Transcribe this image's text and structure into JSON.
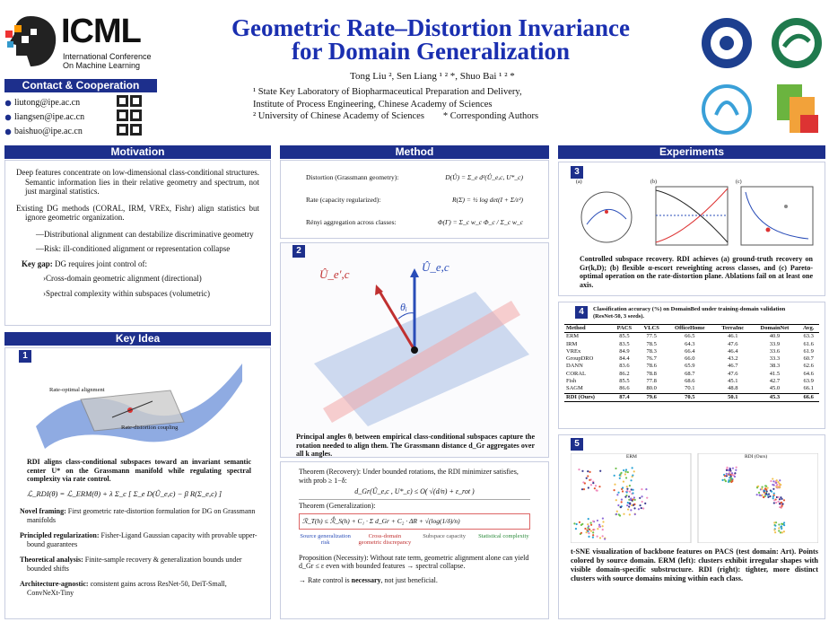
{
  "header": {
    "logo_title": "ICML",
    "logo_sub": [
      "International Conference",
      "On Machine Learning"
    ],
    "title": [
      "Geometric Rate–Distortion Invariance",
      "for Domain Generalization"
    ],
    "authors": "Tong Liu ², Sen Liang ¹ ² *, Shuo Bai ¹ ² *",
    "affiliations": [
      "¹ State Key Laboratory of Biopharmaceutical Preparation and Delivery,",
      "Institute of Process Engineering, Chinese Academy of Sciences",
      "² University of Chinese Academy of Sciences        * Corresponding Authors"
    ]
  },
  "contact": {
    "title": "Contact & Cooperation",
    "emails": [
      "liutong@ipe.ac.cn",
      "liangsen@ipe.ac.cn",
      "baishuo@ipe.ac.cn"
    ]
  },
  "motivation": {
    "title": "Motivation",
    "bullets": [
      "Deep features concentrate on low-dimensional class-conditional structures. Semantic information lies in their relative geometry and spectrum, not just marginal statistics.",
      "Existing DG methods (CORAL, IRM, VREx, Fishr) align statistics but ignore geometric organization."
    ],
    "sub": [
      "—Distributional alignment can destabilize discriminative geometry",
      "—Risk: ill-conditioned alignment or representation collapse"
    ],
    "gap_label": "Key gap:",
    "gap_text": " DG requires joint control of:",
    "gap_items": [
      "›Cross-domain geometric alignment (directional)",
      "›Spectral complexity within subspaces (volumetric)"
    ]
  },
  "key_idea": {
    "title": "Key Idea",
    "panel": "1",
    "fig_labels": [
      "Rate-optimal alignment",
      "Rate-distortion coupling"
    ],
    "caption": "RDI aligns class-conditional subspaces toward an invariant semantic center U* on the Grassmann manifold while regulating spectral complexity via rate control.",
    "formula": "ℒ_RDI(θ) = ℒ_ERM(θ) + λ Σ_c [ Σ_e D(Û_e,c) − β R(Σ_e,c) ]",
    "bullets": [
      {
        "label": "Novel framing:",
        "text": " First geometric rate-distortion formulation for DG on Grassmann manifolds"
      },
      {
        "label": "Principled regularization:",
        "text": " Fisher-Ligand Gaussian capacity with provable upper-bound guarantees"
      },
      {
        "label": "Theoretical analysis:",
        "text": " Finite-sample recovery & generalization bounds under bounded shifts"
      },
      {
        "label": "Architecture-agnostic:",
        "text": " consistent gains across ResNet-50, DeiT-Small, ConvNeXt-Tiny"
      }
    ]
  },
  "method": {
    "title": "Method",
    "eqs": [
      {
        "label": "Distortion (Grassmann geometry):",
        "formula": "D(Û) = Σ_e d²(Û_e,c, U*_c)"
      },
      {
        "label": "Rate (capacity regularized):",
        "formula": "R(Σ) = ½ log det(I + Σ/ε²)"
      },
      {
        "label": "Rényi aggregation across classes:",
        "formula": "Φ(Γ) = Σ_c w_c Φ_c / Σ_c w_c"
      }
    ],
    "panel": "2",
    "vec_labels": [
      "Û_e′,c",
      "Û_e,c",
      "θᵢ"
    ],
    "caption": "Principal angles θᵢ between empirical class-conditional subspaces capture the rotation needed to align them. The Grassmann distance d_Gr aggregates over all k angles.",
    "theorem1": "Theorem (Recovery): Under bounded rotations, the RDI minimizer satisfies, with prob ≥ 1−δ:",
    "theorem1_formula": "d_Gr(Û_e,c , U*_c) ≤ O( √(d/n) + ε_rot )",
    "theorem2": "Theorem (Generalization):",
    "theorem2_formula": "ℛ_T(h) ≤ ℛ̂_S(h) + C₁ · Σ d_Gr + C₂ · ΔR + √(log(1/δ)/n)",
    "terms": [
      "Source generalization risk",
      "Cross-domain geometric discrepancy",
      "Subspace capacity",
      "Statistical complexity"
    ],
    "necessity": "Proposition (Necessity): Without rate term, geometric alignment alone can yield d_Gr ≤ ε even with bounded features → spectral collapse.",
    "conclusion_pre": "→ Rate control is ",
    "conclusion_bold": "necessary",
    "conclusion_post": ", not just beneficial."
  },
  "experiments": {
    "title": "Experiments",
    "panel3": "3",
    "fig3_labels": [
      "(a)",
      "(b)",
      "(c)"
    ],
    "caption3": "Controlled subspace recovery. RDI achieves (a) ground-truth recovery on Gr(k,D); (b) flexible α-escort reweighting across classes, and (c) Pareto-optimal operation on the rate-distortion plane. Ablations fail on at least one axis.",
    "panel4": "4",
    "caption4": "Classification accuracy (%) on DomainBed under training-domain validation (ResNet-50, 3 seeds).",
    "table": {
      "header": [
        "Method",
        "PACS",
        "VLCS",
        "OfficeHome",
        "TerraInc",
        "DomainNet",
        "Avg."
      ],
      "rows": [
        [
          "ERM",
          "85.5",
          "77.5",
          "66.5",
          "46.1",
          "40.9",
          "63.3"
        ],
        [
          "IRM",
          "83.5",
          "78.5",
          "64.3",
          "47.6",
          "33.9",
          "61.6"
        ],
        [
          "VREx",
          "84.9",
          "78.3",
          "66.4",
          "46.4",
          "33.6",
          "61.9"
        ],
        [
          "GroupDRO",
          "84.4",
          "76.7",
          "66.0",
          "43.2",
          "33.3",
          "60.7"
        ],
        [
          "DANN",
          "83.6",
          "78.6",
          "65.9",
          "46.7",
          "38.3",
          "62.6"
        ],
        [
          "CORAL",
          "86.2",
          "78.8",
          "68.7",
          "47.6",
          "41.5",
          "64.6"
        ],
        [
          "Fish",
          "85.5",
          "77.8",
          "68.6",
          "45.1",
          "42.7",
          "63.9"
        ],
        [
          "SAGM",
          "86.6",
          "80.0",
          "70.1",
          "48.8",
          "45.0",
          "66.1"
        ],
        [
          "RDI (Ours)",
          "87.4",
          "79.6",
          "70.5",
          "50.1",
          "45.3",
          "66.6"
        ]
      ]
    },
    "panel5": "5",
    "tsne_labels": [
      "ERM",
      "RDI (Ours)"
    ],
    "caption5": "t-SNE visualization of backbone features on PACS (test domain: Art). Points colored by source domain. ERM (left): clusters exhibit irregular shapes with visible domain-specific substructure. RDI (right): tighter, more distinct clusters with source domains mixing within each class."
  }
}
